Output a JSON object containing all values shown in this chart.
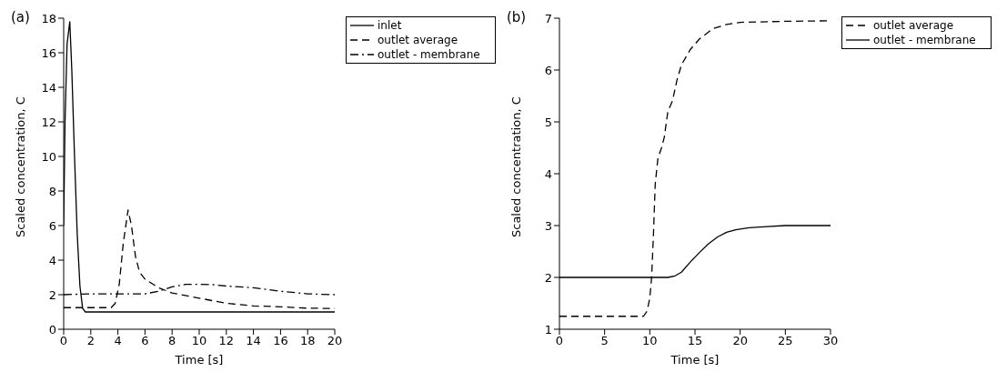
{
  "chart_data": [
    {
      "type": "line",
      "title": "(a)",
      "xlabel": "Time [s]",
      "ylabel": "Scaled concentration, C",
      "xlim": [
        0,
        20
      ],
      "xticks": [
        0,
        2,
        4,
        6,
        8,
        10,
        12,
        14,
        16,
        18,
        20
      ],
      "ylim": [
        0,
        18
      ],
      "yticks": [
        0,
        2,
        4,
        6,
        8,
        10,
        12,
        14,
        16,
        18
      ],
      "legend": "top right",
      "marker": "none",
      "series": [
        {
          "name": "inlet",
          "color": "#000000",
          "line_style": "solid",
          "x": [
            0,
            0.1,
            0.25,
            0.45,
            0.6,
            0.8,
            1.0,
            1.2,
            1.4,
            1.6,
            2,
            5,
            10,
            15,
            20
          ],
          "values": [
            6,
            12,
            16.5,
            17.8,
            15,
            10,
            5.5,
            2.5,
            1.2,
            1,
            1,
            1,
            1,
            1,
            1
          ]
        },
        {
          "name": "outlet average",
          "color": "#000000",
          "line_style": "dashed",
          "x": [
            0,
            2,
            3.5,
            3.8,
            4.1,
            4.4,
            4.75,
            5.0,
            5.3,
            5.6,
            6,
            7,
            8,
            10,
            12,
            14,
            16,
            18,
            20
          ],
          "values": [
            1.25,
            1.25,
            1.25,
            1.5,
            2.6,
            5,
            6.9,
            6,
            4.2,
            3.3,
            2.9,
            2.4,
            2.1,
            1.8,
            1.5,
            1.35,
            1.3,
            1.22,
            1.2
          ]
        },
        {
          "name": "outlet - membrane",
          "color": "#000000",
          "line_style": "dashdot",
          "x": [
            0,
            2,
            4,
            6,
            7,
            8,
            9,
            10,
            11,
            12,
            14,
            16,
            18,
            20
          ],
          "values": [
            2,
            2.05,
            2.05,
            2.05,
            2.2,
            2.45,
            2.6,
            2.6,
            2.58,
            2.5,
            2.4,
            2.2,
            2.05,
            2
          ]
        }
      ]
    },
    {
      "type": "line",
      "title": "(b)",
      "xlabel": "Time [s]",
      "ylabel": "Scaled concentration, C",
      "xlim": [
        0,
        30
      ],
      "xticks": [
        0,
        5,
        10,
        15,
        20,
        25,
        30
      ],
      "ylim": [
        1,
        7
      ],
      "yticks": [
        1,
        2,
        3,
        4,
        5,
        6,
        7
      ],
      "legend": "top right",
      "marker": "none",
      "series": [
        {
          "name": "outlet average",
          "color": "#000000",
          "line_style": "dashed",
          "x": [
            0,
            5,
            9.3,
            9.7,
            10,
            10.2,
            10.4,
            10.6,
            10.9,
            11.3,
            11.6,
            12,
            12.5,
            13,
            13.5,
            14.5,
            15.5,
            17,
            18.5,
            20,
            25,
            30
          ],
          "values": [
            1.25,
            1.25,
            1.25,
            1.35,
            1.6,
            2,
            2.8,
            3.8,
            4.3,
            4.5,
            4.7,
            5.2,
            5.4,
            5.8,
            6.1,
            6.4,
            6.6,
            6.8,
            6.88,
            6.92,
            6.94,
            6.95
          ]
        },
        {
          "name": "outlet - membrane",
          "color": "#000000",
          "line_style": "solid",
          "x": [
            0,
            5,
            10,
            12,
            12.8,
            13.5,
            14.5,
            15.5,
            16.5,
            17.5,
            18.5,
            19.5,
            21,
            23,
            25,
            30
          ],
          "values": [
            2,
            2,
            2,
            2,
            2.03,
            2.1,
            2.3,
            2.48,
            2.65,
            2.78,
            2.87,
            2.92,
            2.96,
            2.98,
            3,
            3
          ]
        }
      ]
    }
  ]
}
